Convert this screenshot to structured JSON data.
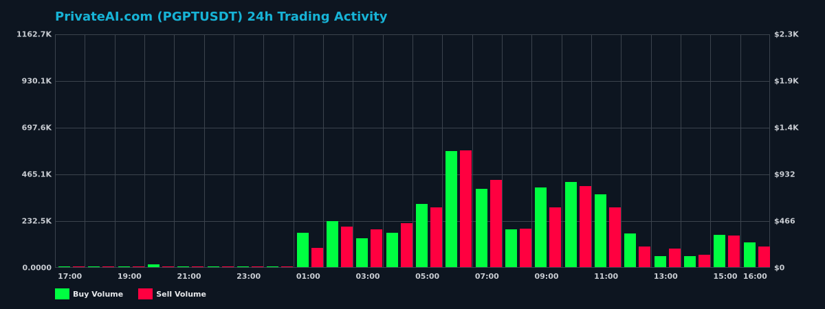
{
  "title": "PrivateAI.com (PGPTUSDT) 24h Trading Activity",
  "colors": {
    "buy": "#00ff41",
    "sell": "#ff0040",
    "title": "#17b3d6",
    "background": "#0d1520",
    "grid": "#3c444e"
  },
  "legend": [
    {
      "label": "Buy Volume",
      "color": "#00ff41"
    },
    {
      "label": "Sell Volume",
      "color": "#ff0040"
    }
  ],
  "y_left_ticks": [
    "1162.7K",
    "930.1K",
    "697.6K",
    "465.1K",
    "232.5K",
    "0.0000"
  ],
  "y_right_ticks": [
    "$2.3K",
    "$1.9K",
    "$1.4K",
    "$932",
    "$466",
    "$0"
  ],
  "x_ticks": [
    {
      "label": "17:00",
      "slot": 0
    },
    {
      "label": "19:00",
      "slot": 2
    },
    {
      "label": "21:00",
      "slot": 4
    },
    {
      "label": "23:00",
      "slot": 6
    },
    {
      "label": "01:00",
      "slot": 8
    },
    {
      "label": "03:00",
      "slot": 10
    },
    {
      "label": "05:00",
      "slot": 12
    },
    {
      "label": "07:00",
      "slot": 14
    },
    {
      "label": "09:00",
      "slot": 16
    },
    {
      "label": "11:00",
      "slot": 18
    },
    {
      "label": "13:00",
      "slot": 20
    },
    {
      "label": "15:00",
      "slot": 22
    },
    {
      "label": "16:00",
      "slot": 23
    }
  ],
  "chart_data": {
    "type": "bar",
    "title": "PrivateAI.com (PGPTUSDT) 24h Trading Activity",
    "xlabel": "",
    "ylabel": "Volume (PGPT)",
    "y2label": "Volume (USD)",
    "ylim": [
      0,
      1162700
    ],
    "y2lim": [
      0,
      2300
    ],
    "grid": true,
    "legend_position": "bottom-left",
    "categories": [
      "17:00",
      "18:00",
      "19:00",
      "20:00",
      "21:00",
      "22:00",
      "23:00",
      "00:00",
      "01:00",
      "02:00",
      "03:00",
      "04:00",
      "05:00",
      "06:00",
      "07:00",
      "08:00",
      "09:00",
      "10:00",
      "11:00",
      "12:00",
      "13:00",
      "14:00",
      "15:00",
      "16:00"
    ],
    "series": [
      {
        "name": "Buy Volume",
        "color": "#00ff41",
        "values": [
          2000,
          2000,
          2000,
          14000,
          2000,
          2000,
          2000,
          2000,
          171000,
          229000,
          144000,
          171000,
          315000,
          581000,
          393000,
          188000,
          400000,
          427000,
          363000,
          168000,
          55000,
          55000,
          161000,
          123000
        ]
      },
      {
        "name": "Sell Volume",
        "color": "#ff0040",
        "values": [
          2000,
          2000,
          2000,
          2000,
          5000,
          2000,
          2000,
          5000,
          96000,
          202000,
          188000,
          219000,
          298000,
          585000,
          438000,
          192000,
          298000,
          407000,
          301000,
          103000,
          92000,
          62000,
          157000,
          103000
        ]
      }
    ]
  }
}
